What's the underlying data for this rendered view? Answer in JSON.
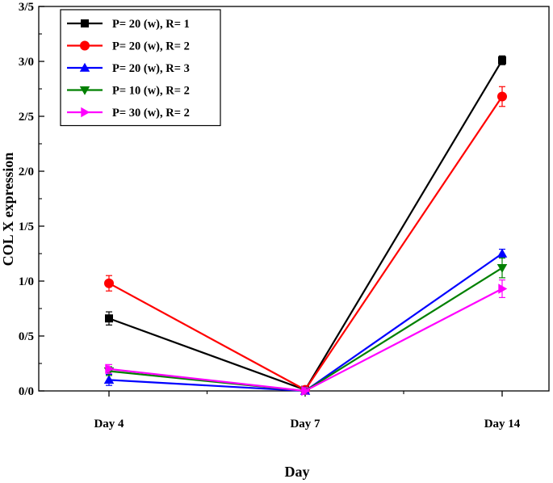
{
  "chart_data": {
    "type": "line",
    "title": "",
    "xlabel": "Day",
    "ylabel": "COL X expression",
    "categories": [
      "Day 4",
      "Day 7",
      "Day 14"
    ],
    "ylim": [
      0.0,
      3.5
    ],
    "yticks": [
      {
        "value": 0.0,
        "label": "0/0"
      },
      {
        "value": 0.5,
        "label": "0/5"
      },
      {
        "value": 1.0,
        "label": "1/0"
      },
      {
        "value": 1.5,
        "label": "1/5"
      },
      {
        "value": 2.0,
        "label": "2/0"
      },
      {
        "value": 2.5,
        "label": "2/5"
      },
      {
        "value": 3.0,
        "label": "3/0"
      },
      {
        "value": 3.5,
        "label": "3/5"
      }
    ],
    "legend_position": "top-left",
    "series": [
      {
        "name": "P= 20 (w), R= 1",
        "color": "#000000",
        "marker": "square",
        "values": [
          0.66,
          0.01,
          3.01
        ],
        "errors": [
          0.06,
          0.03,
          0.04
        ]
      },
      {
        "name": "P= 20 (w), R= 2",
        "color": "#ff0000",
        "marker": "circle",
        "values": [
          0.98,
          0.01,
          2.68
        ],
        "errors": [
          0.07,
          0.03,
          0.09
        ]
      },
      {
        "name": "P= 20 (w), R= 3",
        "color": "#0000ff",
        "marker": "triangle-up",
        "values": [
          0.1,
          0.0,
          1.25
        ],
        "errors": [
          0.05,
          0.03,
          0.04
        ]
      },
      {
        "name": "P= 10 (w), R= 2",
        "color": "#008000",
        "marker": "triangle-down",
        "values": [
          0.18,
          0.0,
          1.12
        ],
        "errors": [
          0.04,
          0.03,
          0.09
        ]
      },
      {
        "name": "P= 30 (w), R= 2",
        "color": "#ff00ff",
        "marker": "triangle-right",
        "values": [
          0.2,
          0.0,
          0.93
        ],
        "errors": [
          0.04,
          0.03,
          0.08
        ]
      }
    ]
  }
}
